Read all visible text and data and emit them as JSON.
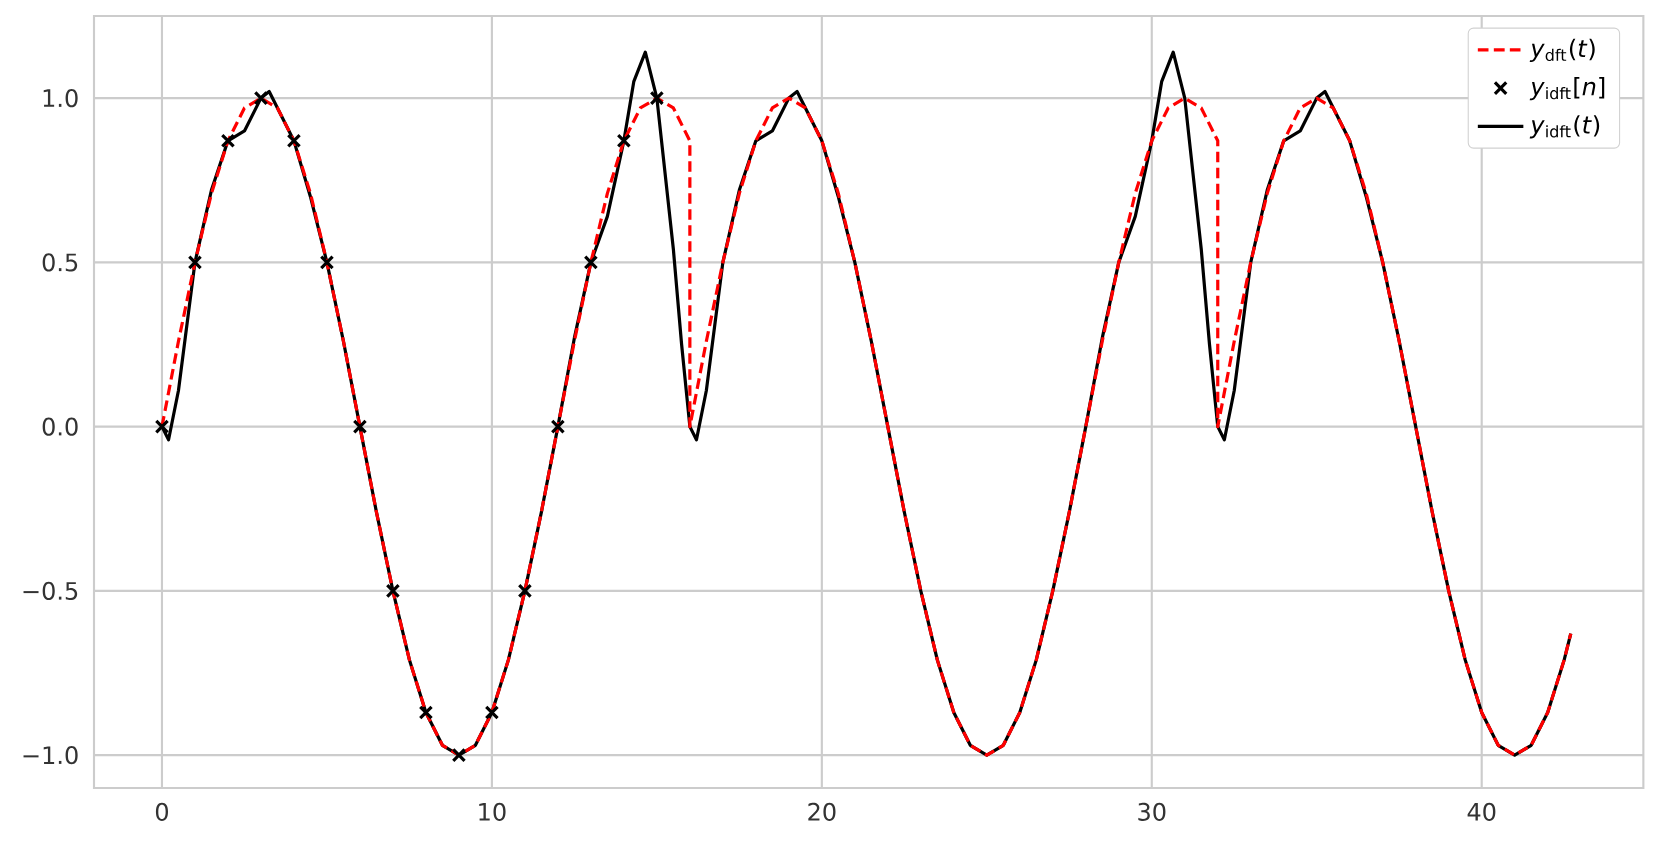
{
  "chart_data": {
    "type": "line",
    "xlim": [
      -2.06,
      44.9
    ],
    "ylim": [
      -1.1,
      1.25
    ],
    "xticks": [
      0,
      10,
      20,
      30,
      40
    ],
    "yticks": [
      {
        "value": -1,
        "label": "−1.0"
      },
      {
        "value": -0.5,
        "label": "−0.5"
      },
      {
        "value": 0,
        "label": "0.0"
      },
      {
        "value": 0.5,
        "label": "0.5"
      },
      {
        "value": 1,
        "label": "1.0"
      }
    ],
    "grid": true,
    "legend": "top right",
    "series": [
      {
        "name": "*y*$_{dft}$(*t*)",
        "color": "#ff0000",
        "line_style": "dashed",
        "marker": "none",
        "x": [
          0,
          0.5,
          1,
          1.5,
          2,
          2.5,
          3,
          3.5,
          4,
          4.5,
          5,
          5.5,
          6,
          6.5,
          7,
          7.5,
          8,
          8.5,
          9,
          9.5,
          10,
          10.5,
          11,
          11.5,
          12,
          12.5,
          13,
          13.5,
          14,
          14.5,
          15,
          15.5,
          16,
          16,
          16.5,
          17,
          17.5,
          18,
          18.5,
          19,
          19.5,
          20,
          20.5,
          21,
          21.5,
          22,
          22.5,
          23,
          23.5,
          24,
          24.5,
          25,
          25.5,
          26,
          26.5,
          27,
          27.5,
          28,
          28.5,
          29,
          29.5,
          30,
          30.5,
          31,
          31.5,
          32,
          32,
          32.5,
          33,
          33.5,
          34,
          34.5,
          35,
          35.5,
          36,
          36.5,
          37,
          37.5,
          38,
          38.5,
          39,
          39.5,
          40,
          40.5,
          41,
          41.5,
          42,
          42.5,
          42.7
        ],
        "values": [
          0,
          0.26,
          0.5,
          0.71,
          0.87,
          0.97,
          1,
          0.97,
          0.87,
          0.71,
          0.5,
          0.26,
          0,
          -0.26,
          -0.5,
          -0.71,
          -0.87,
          -0.97,
          -1,
          -0.97,
          -0.87,
          -0.71,
          -0.5,
          -0.26,
          0,
          0.26,
          0.5,
          0.71,
          0.87,
          0.97,
          1,
          0.97,
          0.87,
          0,
          0.26,
          0.5,
          0.71,
          0.87,
          0.97,
          1,
          0.97,
          0.87,
          0.71,
          0.5,
          0.26,
          0,
          -0.26,
          -0.5,
          -0.71,
          -0.87,
          -0.97,
          -1,
          -0.97,
          -0.87,
          -0.71,
          -0.5,
          -0.26,
          0,
          0.26,
          0.5,
          0.71,
          0.87,
          0.97,
          1,
          0.97,
          0.87,
          0,
          0.26,
          0.5,
          0.71,
          0.87,
          0.97,
          1,
          0.97,
          0.87,
          0.71,
          0.5,
          0.26,
          0,
          -0.26,
          -0.5,
          -0.71,
          -0.87,
          -0.97,
          -1,
          -0.97,
          -0.87,
          -0.71,
          -0.63
        ]
      },
      {
        "name": "*y*$_{idft}$[*n*]",
        "type": "scatter",
        "color": "#000000",
        "marker": "cross",
        "x": [
          0,
          1,
          2,
          3,
          4,
          5,
          6,
          7,
          8,
          9,
          10,
          11,
          12,
          13,
          14,
          15
        ],
        "values": [
          0,
          0.5,
          0.87,
          1,
          0.87,
          0.5,
          0,
          -0.5,
          -0.87,
          -1,
          -0.87,
          -0.5,
          0,
          0.5,
          0.87,
          1
        ]
      },
      {
        "name": "*y*$_{idft}$(*t*)",
        "color": "#000000",
        "line_style": "solid",
        "marker": "none",
        "x": [
          0,
          0.2,
          0.5,
          1,
          1.5,
          2,
          2.5,
          3,
          3.25,
          3.5,
          4,
          4.5,
          5,
          5.5,
          6,
          6.5,
          7,
          7.5,
          8,
          8.5,
          9,
          9.5,
          10,
          10.5,
          11,
          11.5,
          12,
          12.5,
          13,
          13.5,
          14,
          14.3,
          14.65,
          15,
          15.5,
          15.75,
          16,
          16.2,
          16.5,
          17,
          17.5,
          18,
          18.5,
          19,
          19.25,
          19.5,
          20,
          20.5,
          21,
          21.5,
          22,
          22.5,
          23,
          23.5,
          24,
          24.5,
          25,
          25.5,
          26,
          26.5,
          27,
          27.5,
          28,
          28.5,
          29,
          29.5,
          30,
          30.3,
          30.65,
          31,
          31.5,
          31.75,
          32,
          32.2,
          32.5,
          33,
          33.5,
          34,
          34.5,
          35,
          35.25,
          35.5,
          36,
          36.5,
          37,
          37.5,
          38,
          38.5,
          39,
          39.5,
          40,
          40.5,
          41,
          41.5,
          42,
          42.5,
          42.7
        ],
        "values": [
          0,
          -0.04,
          0.11,
          0.5,
          0.72,
          0.87,
          0.9,
          1,
          1.02,
          0.97,
          0.87,
          0.7,
          0.5,
          0.26,
          0,
          -0.26,
          -0.5,
          -0.71,
          -0.87,
          -0.97,
          -1,
          -0.97,
          -0.87,
          -0.71,
          -0.5,
          -0.26,
          0,
          0.27,
          0.5,
          0.64,
          0.87,
          1.05,
          1.14,
          1,
          0.54,
          0.25,
          0,
          -0.04,
          0.11,
          0.5,
          0.72,
          0.87,
          0.9,
          1,
          1.02,
          0.97,
          0.87,
          0.7,
          0.5,
          0.26,
          0,
          -0.26,
          -0.5,
          -0.71,
          -0.87,
          -0.97,
          -1,
          -0.97,
          -0.87,
          -0.71,
          -0.5,
          -0.26,
          0,
          0.27,
          0.5,
          0.64,
          0.87,
          1.05,
          1.14,
          1,
          0.54,
          0.25,
          0,
          -0.04,
          0.11,
          0.5,
          0.72,
          0.87,
          0.9,
          1,
          1.02,
          0.97,
          0.87,
          0.7,
          0.5,
          0.26,
          0,
          -0.26,
          -0.5,
          -0.71,
          -0.87,
          -0.97,
          -1,
          -0.97,
          -0.87,
          -0.71,
          -0.63
        ]
      }
    ]
  }
}
